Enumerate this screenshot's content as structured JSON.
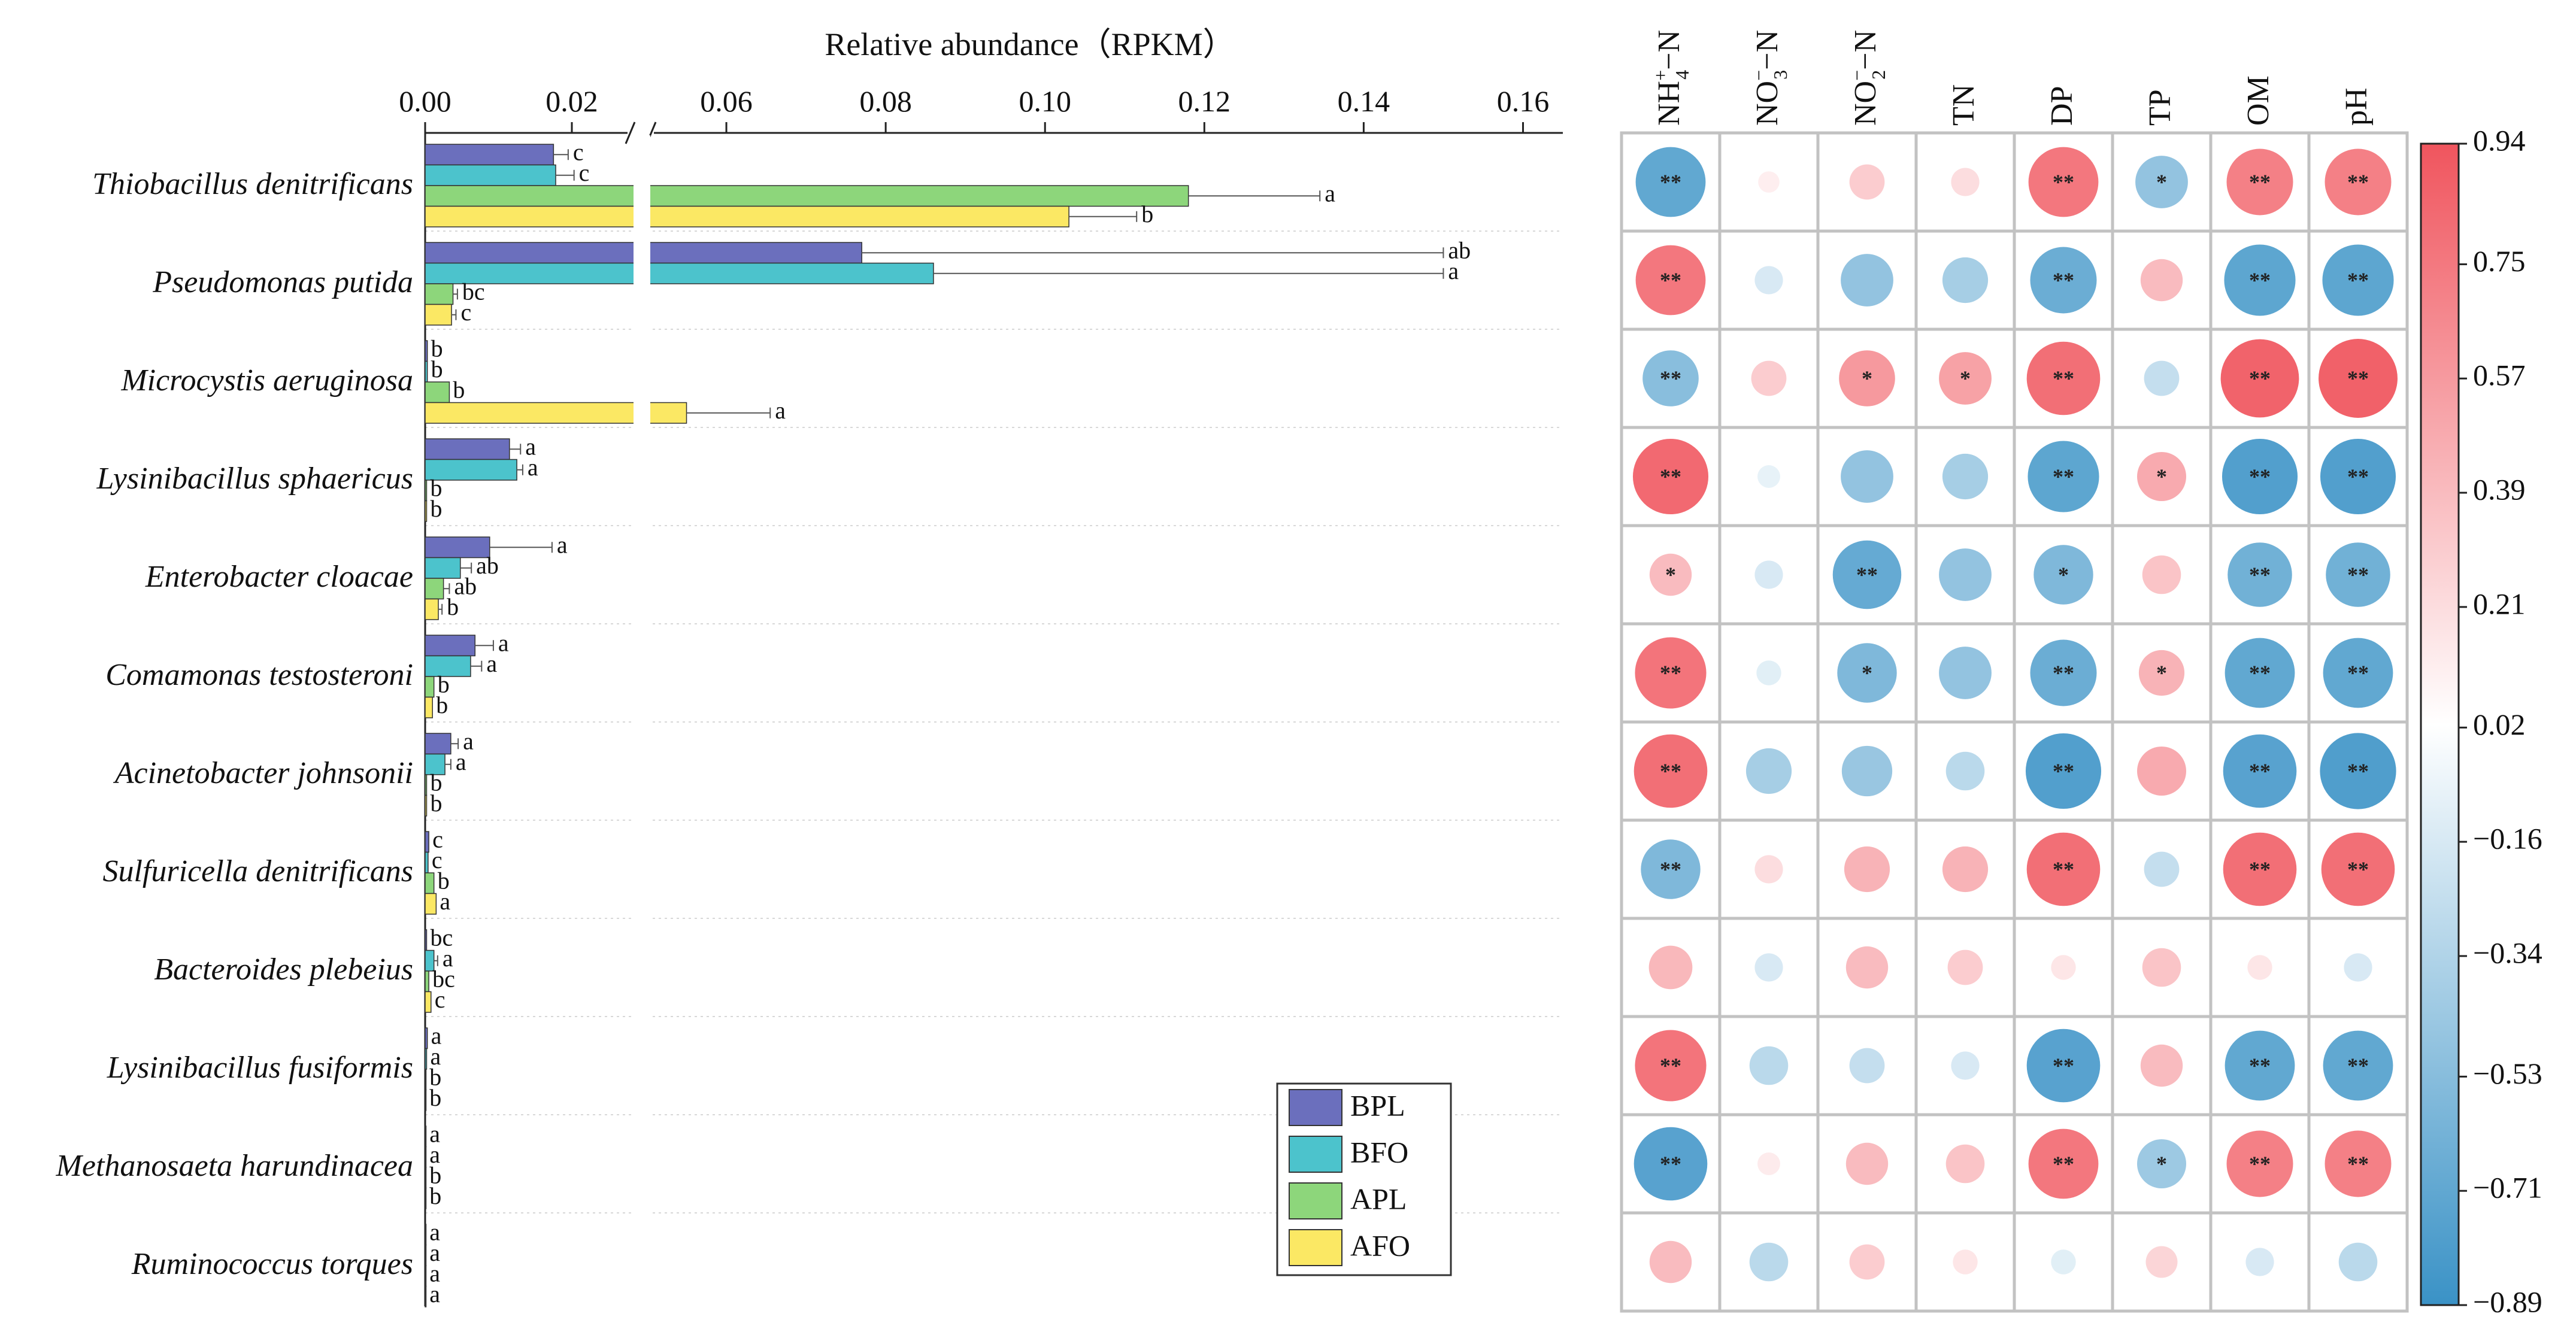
{
  "chart_data": [
    {
      "type": "bar",
      "orientation": "horizontal",
      "title": "Relative abundance（RPKM）",
      "x_axis_break": [
        0.028,
        0.05
      ],
      "xlim": [
        0,
        0.165
      ],
      "x_ticks_left": [
        "0.00",
        "0.02"
      ],
      "x_ticks_right": [
        "0.06",
        "0.08",
        "0.10",
        "0.12",
        "0.14",
        "0.16"
      ],
      "x_tick_values_left": [
        0.0,
        0.02
      ],
      "x_tick_values_right": [
        0.06,
        0.08,
        0.1,
        0.12,
        0.14,
        0.16
      ],
      "legend_position": "bottom-right",
      "categories": [
        "Thiobacillus denitrificans",
        "Pseudomonas putida",
        "Microcystis aeruginosa",
        "Lysinibacillus sphaericus",
        "Enterobacter cloacae",
        "Comamonas testosteroni",
        "Acinetobacter johnsonii",
        "Sulfuricella denitrificans",
        "Bacteroides plebeius",
        "Lysinibacillus fusiformis",
        "Methanosaeta harundinacea",
        "Ruminococcus torques"
      ],
      "series": [
        {
          "name": "BPL",
          "color": "#6b6fbd",
          "values": [
            0.0175,
            0.077,
            0.0003,
            0.0115,
            0.0088,
            0.0068,
            0.0035,
            0.0005,
            0.0002,
            0.0003,
            0.0001,
            0.0001
          ],
          "errors": [
            0.002,
            0.073,
            0.0001,
            0.0015,
            0.0085,
            0.0025,
            0.001,
            0.0002,
            0.0002,
            0.0001,
            0.0,
            0.0
          ],
          "letters": [
            "c",
            "ab",
            "b",
            "a",
            "a",
            "a",
            "a",
            "c",
            "bc",
            "a",
            "a",
            "a"
          ]
        },
        {
          "name": "BFO",
          "color": "#4cc3cc",
          "values": [
            0.0178,
            0.086,
            0.0003,
            0.0125,
            0.0048,
            0.0062,
            0.0027,
            0.0004,
            0.0012,
            0.0002,
            0.0001,
            0.0001
          ],
          "errors": [
            0.0025,
            0.064,
            0.0001,
            0.0008,
            0.0015,
            0.0015,
            0.0008,
            0.0002,
            0.0005,
            0.0001,
            0.0,
            0.0
          ],
          "letters": [
            "c",
            "a",
            "b",
            "a",
            "ab",
            "a",
            "a",
            "c",
            "a",
            "a",
            "a",
            "a"
          ]
        },
        {
          "name": "APL",
          "color": "#8dd67b",
          "values": [
            0.118,
            0.0038,
            0.0033,
            0.0002,
            0.0025,
            0.0012,
            0.0002,
            0.0012,
            0.0005,
            0.0001,
            0.0001,
            0.0001
          ],
          "errors": [
            0.0165,
            0.0006,
            0.0004,
            0.0001,
            0.0008,
            0.0003,
            0.0001,
            0.0003,
            0.0002,
            0.0,
            0.0,
            0.0
          ],
          "letters": [
            "a",
            "bc",
            "b",
            "b",
            "ab",
            "b",
            "b",
            "b",
            "bc",
            "b",
            "b",
            "a"
          ]
        },
        {
          "name": "AFO",
          "color": "#fbe864",
          "values": [
            0.103,
            0.0036,
            0.055,
            0.0002,
            0.0018,
            0.001,
            0.0002,
            0.0015,
            0.0008,
            0.0001,
            0.0001,
            0.0001
          ],
          "errors": [
            0.0085,
            0.0006,
            0.0105,
            0.0001,
            0.0005,
            0.0003,
            0.0001,
            0.0004,
            0.0003,
            0.0,
            0.0,
            0.0
          ],
          "letters": [
            "b",
            "c",
            "a",
            "b",
            "b",
            "b",
            "b",
            "a",
            "c",
            "b",
            "b",
            "a"
          ]
        }
      ]
    },
    {
      "type": "heatmap",
      "style": "circle correlation matrix",
      "columns": [
        {
          "label": "NH",
          "sub": "4",
          "sup": "+",
          "tail": "−N"
        },
        {
          "label": "NO",
          "sub": "3",
          "sup": "−",
          "tail": "−N"
        },
        {
          "label": "NO",
          "sub": "2",
          "sup": "−",
          "tail": "−N"
        },
        {
          "label": "TN",
          "sub": "",
          "sup": "",
          "tail": ""
        },
        {
          "label": "DP",
          "sub": "",
          "sup": "",
          "tail": ""
        },
        {
          "label": "TP",
          "sub": "",
          "sup": "",
          "tail": ""
        },
        {
          "label": "OM",
          "sub": "",
          "sup": "",
          "tail": ""
        },
        {
          "label": "pH",
          "sub": "",
          "sup": "",
          "tail": ""
        }
      ],
      "rows": [
        "Thiobacillus denitrificans",
        "Pseudomonas putida",
        "Microcystis aeruginosa",
        "Lysinibacillus sphaericus",
        "Enterobacter cloacae",
        "Comamonas testosteroni",
        "Acinetobacter johnsonii",
        "Sulfuricella denitrificans",
        "Bacteroides plebeius",
        "Lysinibacillus fusiformis",
        "Methanosaeta harundinacea",
        "Ruminococcus torques"
      ],
      "values": [
        [
          -0.8,
          0.1,
          0.3,
          0.2,
          0.8,
          -0.55,
          0.75,
          0.75
        ],
        [
          0.8,
          -0.2,
          -0.55,
          -0.45,
          -0.75,
          0.4,
          -0.82,
          -0.82
        ],
        [
          -0.6,
          0.3,
          0.6,
          0.55,
          0.85,
          -0.3,
          0.92,
          0.93
        ],
        [
          0.88,
          -0.12,
          -0.55,
          -0.45,
          -0.82,
          0.5,
          -0.88,
          -0.88
        ],
        [
          0.4,
          -0.2,
          -0.78,
          -0.55,
          -0.65,
          0.35,
          -0.72,
          -0.72
        ],
        [
          0.82,
          -0.15,
          -0.65,
          -0.55,
          -0.75,
          0.45,
          -0.8,
          -0.8
        ],
        [
          0.85,
          -0.45,
          -0.52,
          -0.35,
          -0.88,
          0.5,
          -0.85,
          -0.89
        ],
        [
          -0.65,
          0.2,
          0.45,
          0.45,
          0.85,
          -0.3,
          0.85,
          0.85
        ],
        [
          0.42,
          -0.2,
          0.4,
          0.3,
          0.15,
          0.35,
          0.15,
          -0.2
        ],
        [
          0.82,
          -0.35,
          -0.3,
          -0.2,
          -0.85,
          0.4,
          -0.8,
          -0.8
        ],
        [
          -0.85,
          0.12,
          0.4,
          0.35,
          0.8,
          -0.5,
          0.75,
          0.75
        ],
        [
          0.4,
          -0.35,
          0.3,
          0.15,
          -0.15,
          0.25,
          -0.2,
          -0.35
        ]
      ],
      "significance": [
        [
          "**",
          "",
          "",
          "",
          "**",
          "*",
          "**",
          "**"
        ],
        [
          "**",
          "",
          "",
          "",
          "**",
          "",
          "**",
          "**"
        ],
        [
          "**",
          "",
          "*",
          "*",
          "**",
          "",
          "**",
          "**"
        ],
        [
          "**",
          "",
          "",
          "",
          "**",
          "*",
          "**",
          "**"
        ],
        [
          "*",
          "",
          "**",
          "",
          "*",
          "",
          "**",
          "**"
        ],
        [
          "**",
          "",
          "*",
          "",
          "**",
          "*",
          "**",
          "**"
        ],
        [
          "**",
          "",
          "",
          "",
          "**",
          "",
          "**",
          "**"
        ],
        [
          "**",
          "",
          "",
          "",
          "**",
          "",
          "**",
          "**"
        ],
        [
          "",
          "",
          "",
          "",
          "",
          "",
          "",
          ""
        ],
        [
          "**",
          "",
          "",
          "",
          "**",
          "",
          "**",
          "**"
        ],
        [
          "**",
          "",
          "",
          "",
          "**",
          "*",
          "**",
          "**"
        ],
        [
          "",
          "",
          "",
          "",
          "",
          "",
          "",
          ""
        ]
      ],
      "colorbar": {
        "range": [
          -0.89,
          0.94
        ],
        "ticks": [
          "0.94",
          "0.75",
          "0.57",
          "0.39",
          "0.21",
          "0.02",
          "−0.16",
          "−0.34",
          "−0.53",
          "−0.71",
          "−0.89"
        ],
        "tick_values": [
          0.94,
          0.75,
          0.57,
          0.39,
          0.21,
          0.02,
          -0.16,
          -0.34,
          -0.53,
          -0.71,
          -0.89
        ],
        "colors": {
          "negative": "#3a92c6",
          "neutral": "#ffffff",
          "positive": "#f0555e"
        }
      }
    }
  ]
}
